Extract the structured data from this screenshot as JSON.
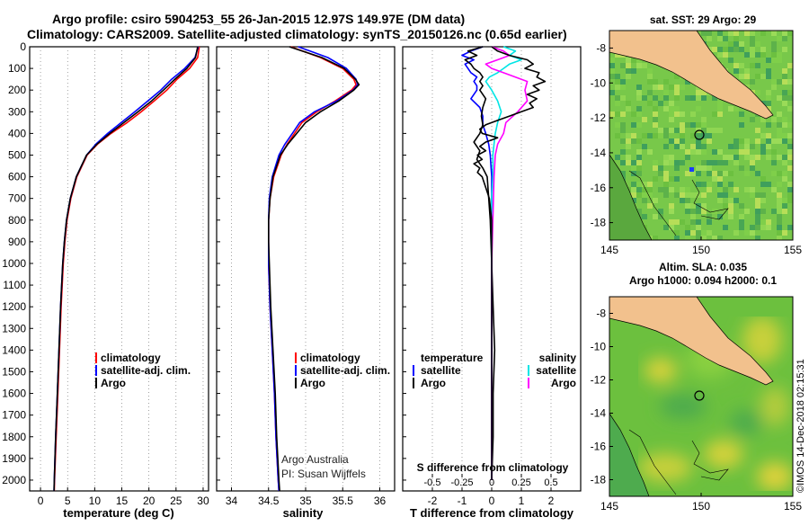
{
  "header": {
    "line1": "Argo profile: csiro 5904253_55 26-Jan-2015 12.97S 149.97E (DM data)",
    "line2": "Climatology: CARS2009. Satellite-adjusted climatology: synTS_20150126.nc (0.65d earlier)"
  },
  "legend": {
    "climatology": "climatology",
    "satellite_adj": "satellite-adj. clim.",
    "argo": "Argo",
    "temperature": "temperature",
    "salinity": "salinity",
    "satellite": "satellite"
  },
  "credit": {
    "line1": "Argo Australia",
    "line2": "PI: Susan Wijffels"
  },
  "diff_titles": {
    "s_diff": "S difference from climatology",
    "t_diff": "T difference from climatology"
  },
  "maps": {
    "sst_title": "sat. SST: 29 Argo: 29",
    "sla_title1": "Altim. SLA: 0.035",
    "sla_title2": "Argo h1000: 0.094 h2000: 0.1",
    "lat_ticks": [
      "-8",
      "-10",
      "-12",
      "-14",
      "-16",
      "-18"
    ],
    "lon_ticks": [
      "145",
      "150",
      "155"
    ],
    "watermark": "©IMOS 14-Dec-2018 02:15:31"
  },
  "colors": {
    "climatology": "#ff0000",
    "satellite": "#0000ff",
    "argo": "#000000",
    "sat_sal": "#00e5e5",
    "argo_sal": "#ff00ff"
  },
  "chart_data": [
    {
      "type": "line",
      "id": "temperature",
      "xlabel": "temperature (deg C)",
      "ylabel": "",
      "xlim": [
        -2,
        31
      ],
      "ylim": [
        2050,
        0
      ],
      "xticks": [
        0,
        5,
        10,
        15,
        20,
        25,
        30
      ],
      "yticks": [
        0,
        100,
        200,
        300,
        400,
        500,
        600,
        700,
        800,
        900,
        1000,
        1100,
        1200,
        1300,
        1400,
        1500,
        1600,
        1700,
        1800,
        1900,
        2000
      ],
      "series": [
        {
          "name": "climatology",
          "color": "#ff0000",
          "depth": [
            0,
            50,
            100,
            150,
            200,
            250,
            300,
            350,
            400,
            450,
            500,
            600,
            700,
            800,
            900,
            1000,
            1200,
            1400,
            1600,
            1800,
            2000,
            2050
          ],
          "values": [
            29.3,
            29.0,
            27.5,
            25.2,
            23.3,
            21.0,
            18.6,
            16.0,
            13.0,
            10.5,
            8.6,
            6.7,
            5.6,
            4.9,
            4.5,
            4.2,
            3.8,
            3.5,
            3.2,
            2.9,
            2.6,
            2.55
          ]
        },
        {
          "name": "satellite-adj. clim.",
          "color": "#0000ff",
          "depth": [
            0,
            50,
            100,
            150,
            200,
            250,
            300,
            350,
            400,
            450,
            500,
            600,
            700,
            800,
            900,
            1000,
            1200,
            1400,
            1600,
            1800,
            2000,
            2050
          ],
          "values": [
            29.1,
            28.5,
            26.6,
            24.2,
            22.2,
            19.8,
            17.4,
            14.9,
            12.4,
            10.2,
            8.5,
            6.6,
            5.5,
            4.8,
            4.4,
            4.1,
            3.7,
            3.4,
            3.1,
            2.8,
            2.55,
            2.5
          ]
        },
        {
          "name": "Argo",
          "color": "#000000",
          "depth": [
            0,
            50,
            100,
            150,
            200,
            250,
            300,
            350,
            400,
            450,
            500,
            600,
            700,
            800,
            900,
            1000,
            1200,
            1400,
            1600,
            1800,
            2000,
            2050
          ],
          "values": [
            29.0,
            28.6,
            27.0,
            24.8,
            22.7,
            20.5,
            18.0,
            15.4,
            12.8,
            10.4,
            8.5,
            6.6,
            5.5,
            4.8,
            4.4,
            4.1,
            3.7,
            3.4,
            3.1,
            2.8,
            2.55,
            2.5
          ]
        }
      ]
    },
    {
      "type": "line",
      "id": "salinity",
      "xlabel": "salinity",
      "ylabel": "",
      "xlim": [
        33.8,
        36.2
      ],
      "ylim": [
        2050,
        0
      ],
      "xticks": [
        34,
        34.5,
        35,
        35.5,
        36
      ],
      "series": [
        {
          "name": "climatology",
          "color": "#ff0000",
          "depth": [
            0,
            25,
            50,
            100,
            150,
            175,
            200,
            250,
            300,
            350,
            400,
            450,
            500,
            600,
            700,
            800,
            900,
            1000,
            1200,
            1400,
            1600,
            1800,
            2000,
            2050
          ],
          "values": [
            34.8,
            35.0,
            35.2,
            35.5,
            35.65,
            35.68,
            35.62,
            35.4,
            35.15,
            34.95,
            34.85,
            34.75,
            34.67,
            34.57,
            34.52,
            34.5,
            34.5,
            34.5,
            34.52,
            34.55,
            34.58,
            34.6,
            34.63,
            34.64
          ]
        },
        {
          "name": "satellite-adj. clim.",
          "color": "#0000ff",
          "depth": [
            0,
            25,
            50,
            100,
            150,
            175,
            200,
            250,
            300,
            350,
            400,
            450,
            500,
            600,
            700,
            800,
            900,
            1000,
            1200,
            1400,
            1600,
            1800,
            2000,
            2050
          ],
          "values": [
            34.9,
            35.1,
            35.3,
            35.55,
            35.68,
            35.7,
            35.64,
            35.42,
            35.12,
            34.92,
            34.82,
            34.72,
            34.64,
            34.55,
            34.51,
            34.5,
            34.5,
            34.5,
            34.52,
            34.55,
            34.58,
            34.6,
            34.63,
            34.64
          ]
        },
        {
          "name": "Argo",
          "color": "#000000",
          "depth": [
            0,
            25,
            50,
            100,
            150,
            175,
            200,
            250,
            300,
            350,
            400,
            450,
            500,
            600,
            700,
            800,
            900,
            1000,
            1200,
            1400,
            1600,
            1800,
            2000,
            2050
          ],
          "values": [
            34.78,
            35.0,
            35.22,
            35.52,
            35.67,
            35.72,
            35.65,
            35.45,
            35.2,
            35.0,
            34.88,
            34.76,
            34.66,
            34.56,
            34.52,
            34.5,
            34.5,
            34.51,
            34.53,
            34.56,
            34.59,
            34.61,
            34.64,
            34.65
          ]
        }
      ]
    },
    {
      "type": "line",
      "id": "differences",
      "xlabel": "T difference from climatology",
      "xlim": [
        -3,
        3
      ],
      "ylim": [
        2050,
        0
      ],
      "xticks": [
        -2,
        -1,
        0,
        1,
        2
      ],
      "s_xlim": [
        -0.75,
        0.75
      ],
      "s_xticks": [
        -0.5,
        -0.25,
        0,
        0.25,
        0.5
      ],
      "s_ticklabels": [
        "-0.5",
        "-0.25",
        "0",
        "0.25",
        "0.5"
      ],
      "series": [
        {
          "name": "T satellite",
          "color": "#0000ff",
          "axis": "T",
          "depth": [
            0,
            20,
            40,
            60,
            80,
            100,
            120,
            140,
            160,
            180,
            200,
            240,
            280,
            320,
            360,
            400,
            450,
            500,
            600,
            800,
            1000,
            1500,
            2000
          ],
          "values": [
            -0.3,
            -0.7,
            -1.0,
            -0.6,
            -0.9,
            -0.8,
            -0.7,
            -0.5,
            -0.6,
            -0.5,
            -0.5,
            -0.7,
            -0.4,
            -0.3,
            -0.3,
            -0.2,
            -0.1,
            -0.05,
            0,
            0,
            0,
            0,
            0
          ]
        },
        {
          "name": "T Argo",
          "color": "#000000",
          "axis": "T",
          "depth": [
            0,
            20,
            40,
            60,
            80,
            100,
            120,
            140,
            160,
            180,
            200,
            240,
            280,
            320,
            360,
            400,
            440,
            480,
            520,
            560,
            600,
            700,
            800,
            1000,
            1200,
            1400,
            1600,
            1800,
            2000
          ],
          "values": [
            -0.3,
            -0.8,
            -0.5,
            -0.9,
            -0.7,
            -0.6,
            -0.4,
            -0.3,
            -0.4,
            -0.3,
            -0.4,
            -0.2,
            -0.3,
            -0.35,
            -0.3,
            -0.4,
            -0.6,
            -0.4,
            -0.5,
            -0.3,
            -0.15,
            -0.1,
            -0.05,
            0,
            0.05,
            0.1,
            0.05,
            0.05,
            0
          ]
        },
        {
          "name": "S satellite",
          "color": "#00e5e5",
          "axis": "S",
          "depth": [
            0,
            20,
            40,
            60,
            80,
            100,
            120,
            140,
            160,
            200,
            250,
            300,
            350,
            400,
            450,
            500,
            600,
            700,
            800,
            1000,
            1500,
            2000
          ],
          "values": [
            0.1,
            0.2,
            0.15,
            0.25,
            0.15,
            0.1,
            0.05,
            -0.02,
            -0.05,
            0.0,
            0.05,
            0.08,
            0.05,
            0.03,
            0.02,
            0.01,
            0.01,
            0.0,
            0.0,
            0.0,
            0.0,
            0.0
          ]
        },
        {
          "name": "S Argo",
          "color": "#ff00ff",
          "axis": "S",
          "depth": [
            0,
            20,
            40,
            60,
            80,
            100,
            120,
            140,
            160,
            200,
            250,
            300,
            350,
            400,
            450,
            500,
            600,
            800,
            1000,
            1500,
            2000
          ],
          "values": [
            0.0,
            0.1,
            0.15,
            0.05,
            -0.05,
            0.0,
            0.1,
            0.2,
            0.3,
            0.28,
            0.3,
            0.22,
            0.12,
            0.1,
            0.05,
            0.03,
            0.02,
            0.01,
            0.0,
            0.0,
            0.0
          ]
        },
        {
          "name": "S Argo-clim (black)",
          "color": "#000000",
          "axis": "S",
          "depth": [
            0,
            20,
            40,
            60,
            80,
            100,
            120,
            140,
            160,
            180,
            200,
            220,
            240,
            260,
            280,
            300,
            320,
            340,
            360,
            380,
            400,
            420,
            440,
            460,
            480,
            500,
            520,
            540,
            560,
            580,
            600,
            650,
            700,
            800,
            900,
            1000,
            1200,
            1400,
            1600,
            1800,
            2000
          ],
          "values": [
            0.0,
            0.05,
            0.15,
            0.3,
            0.35,
            0.28,
            0.4,
            0.38,
            0.45,
            0.35,
            0.4,
            0.3,
            0.38,
            0.32,
            0.35,
            0.25,
            0.15,
            0.05,
            -0.05,
            -0.1,
            -0.08,
            0.05,
            -0.05,
            -0.1,
            -0.05,
            -0.12,
            -0.08,
            -0.15,
            -0.1,
            -0.12,
            -0.08,
            -0.05,
            -0.02,
            0.0,
            0.0,
            0.0,
            0.0,
            0.0,
            0.0,
            0.0,
            0.0
          ]
        }
      ]
    }
  ]
}
